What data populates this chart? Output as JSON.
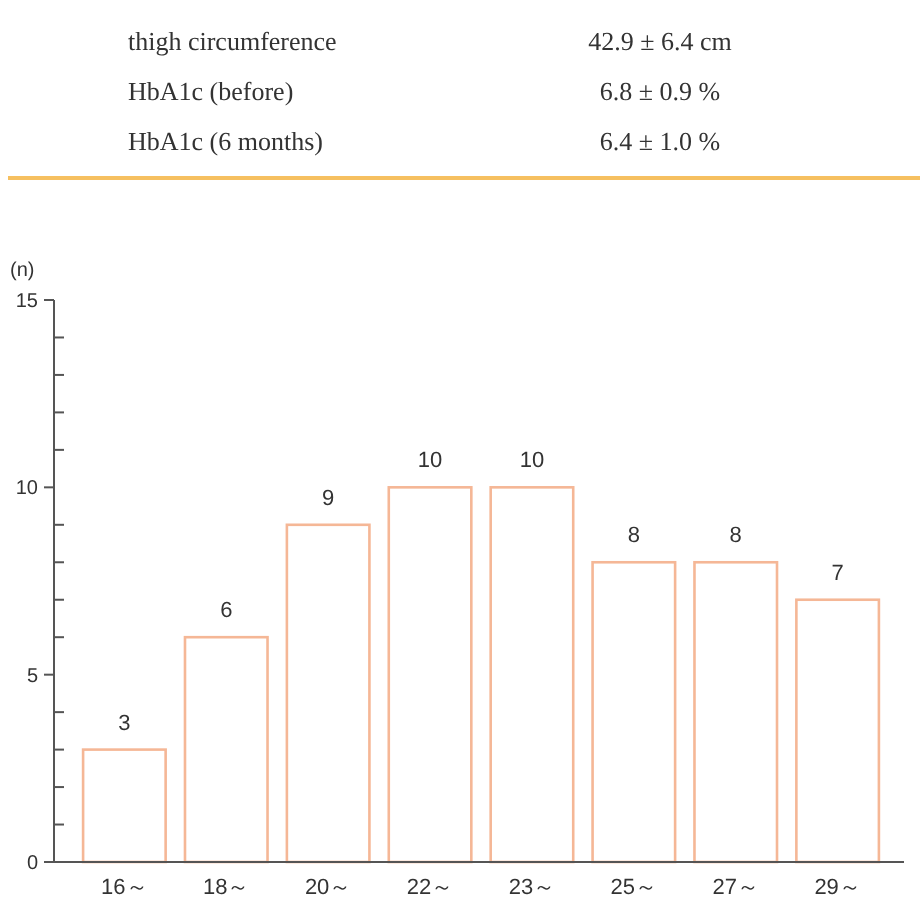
{
  "chart_data": {
    "type": "bar",
    "ylabel": "(n)",
    "annotations": [
      "thigh circumference",
      "42.9 ± 6.4 cm",
      "HbA1c (before)",
      "6.8 ± 0.9 %",
      "HbA1c (6 months)",
      "6.4 ± 1.0 %"
    ],
    "categories": [
      "16～",
      "18～",
      "20～",
      "22～",
      "23～",
      "25～",
      "27～",
      "29～"
    ],
    "values": [
      3,
      6,
      9,
      10,
      10,
      8,
      8,
      7
    ],
    "color": "#f5b796",
    "ylim": [
      0,
      15
    ],
    "yticks": [
      0,
      {
        "value": 1,
        "label": null
      },
      {
        "value": 2,
        "label": null
      },
      {
        "value": 3,
        "label": null
      },
      {
        "value": 4,
        "label": null
      },
      5,
      {
        "value": 6,
        "label": null
      },
      {
        "value": 7,
        "label": null
      },
      {
        "value": 8,
        "label": null
      },
      {
        "value": 9,
        "label": null
      },
      10,
      {
        "value": 11,
        "label": null
      },
      {
        "value": 12,
        "label": null
      },
      {
        "value": 13,
        "label": null
      },
      {
        "value": 14,
        "label": null
      },
      15
    ],
    "data_labels": true
  }
}
